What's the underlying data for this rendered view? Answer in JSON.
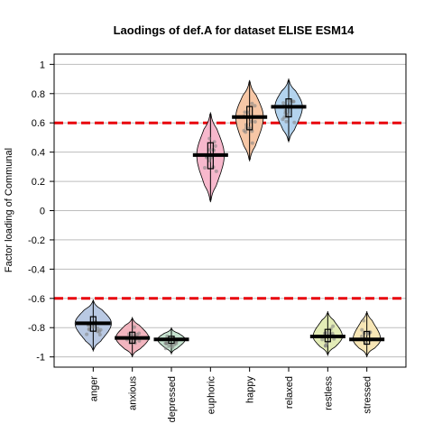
{
  "chart_data": {
    "type": "violin",
    "title": "Laodings of def.A for dataset ELISE ESM14",
    "xlabel": "",
    "ylabel": "Factor loading of Communal",
    "ylim": [
      -1.07,
      1.07
    ],
    "yticks": [
      1,
      0.8,
      0.6,
      0.4,
      0.2,
      0,
      -0.2,
      -0.4,
      -0.6,
      -0.8,
      -1
    ],
    "ytick_labels": [
      "1",
      "0.8",
      "0.6",
      "0.4",
      "0.2",
      "0",
      "-0.2",
      "-0.4",
      "-0.6",
      "-0.8",
      "-1"
    ],
    "grid": true,
    "reference_lines": [
      {
        "y": 0.6,
        "color": "#e8000b",
        "style": "dashed"
      },
      {
        "y": -0.6,
        "color": "#e8000b",
        "style": "dashed"
      }
    ],
    "categories": [
      "anger",
      "anxious",
      "depressed",
      "euphoric",
      "happy",
      "relaxed",
      "restless",
      "stressed"
    ],
    "series": [
      {
        "category": "anger",
        "median": -0.77,
        "min": -0.95,
        "max": -0.62,
        "width": 0.4,
        "color": "#b9c9e3"
      },
      {
        "category": "anxious",
        "median": -0.87,
        "min": -0.99,
        "max": -0.74,
        "width": 0.36,
        "color": "#f2b5bf"
      },
      {
        "category": "depressed",
        "median": -0.88,
        "min": -0.97,
        "max": -0.81,
        "width": 0.3,
        "color": "#c5e3cf"
      },
      {
        "category": "euphoric",
        "median": 0.38,
        "min": 0.07,
        "max": 0.66,
        "width": 0.3,
        "color": "#f7b8cc"
      },
      {
        "category": "happy",
        "median": 0.64,
        "min": 0.35,
        "max": 0.88,
        "width": 0.3,
        "color": "#f7c7a6"
      },
      {
        "category": "relaxed",
        "median": 0.71,
        "min": 0.48,
        "max": 0.89,
        "width": 0.3,
        "color": "#b3d3ee"
      },
      {
        "category": "restless",
        "median": -0.86,
        "min": -0.98,
        "max": -0.7,
        "width": 0.32,
        "color": "#e3ecb7"
      },
      {
        "category": "stressed",
        "median": -0.88,
        "min": -0.99,
        "max": -0.7,
        "width": 0.3,
        "color": "#f7e6b6"
      }
    ]
  }
}
